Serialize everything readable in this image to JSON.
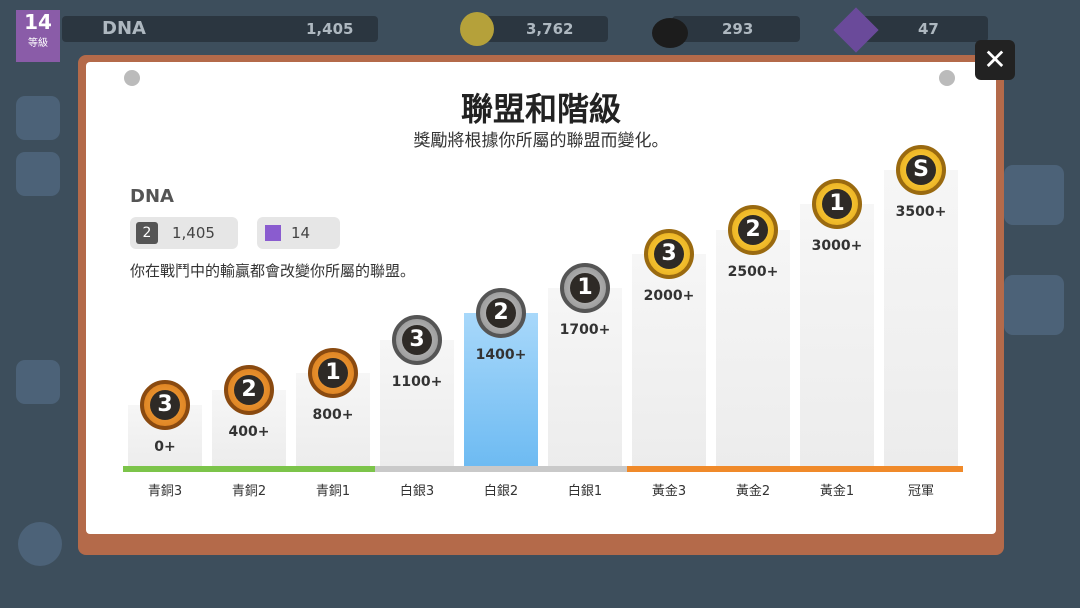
{
  "top_bar": {
    "level": "14",
    "level_label": "等級",
    "player_name": "DNA",
    "trophies": "1,405",
    "coins": "3,762",
    "oil": "293",
    "gems": "47"
  },
  "dialog": {
    "title": "聯盟和階級",
    "subtitle": "獎勵將根據你所屬的聯盟而變化。",
    "player": {
      "name": "DNA",
      "rank": "2",
      "trophies": "1,405",
      "level": "14"
    },
    "description": "你在戰鬥中的輸贏都會改變你所屬的聯盟。",
    "leagues": [
      {
        "rank": "3",
        "threshold": "0+",
        "name": "青銅3"
      },
      {
        "rank": "2",
        "threshold": "400+",
        "name": "青銅2"
      },
      {
        "rank": "1",
        "threshold": "800+",
        "name": "青銅1"
      },
      {
        "rank": "3",
        "threshold": "1100+",
        "name": "白銀3"
      },
      {
        "rank": "2",
        "threshold": "1400+",
        "name": "白銀2"
      },
      {
        "rank": "1",
        "threshold": "1700+",
        "name": "白銀1"
      },
      {
        "rank": "3",
        "threshold": "2000+",
        "name": "黃金3"
      },
      {
        "rank": "2",
        "threshold": "2500+",
        "name": "黃金2"
      },
      {
        "rank": "1",
        "threshold": "3000+",
        "name": "黃金1"
      },
      {
        "rank": "S",
        "threshold": "3500+",
        "name": "冠軍"
      }
    ]
  }
}
